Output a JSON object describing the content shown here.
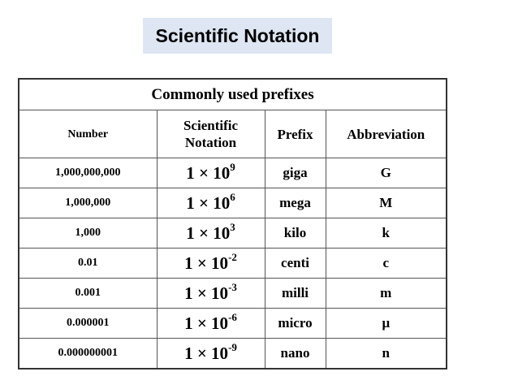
{
  "title": "Scientific Notation",
  "table": {
    "caption": "Commonly used prefixes",
    "headers": {
      "number": "Number",
      "scientific_line1": "Scientific",
      "scientific_line2": "Notation",
      "prefix": "Prefix",
      "abbreviation": "Abbreviation"
    },
    "rows": [
      {
        "number": "1,000,000,000",
        "mantissa": "1 × 10",
        "exponent": "9",
        "prefix": "giga",
        "abbr": "G"
      },
      {
        "number": "1,000,000",
        "mantissa": "1 × 10",
        "exponent": "6",
        "prefix": "mega",
        "abbr": "M"
      },
      {
        "number": "1,000",
        "mantissa": "1 × 10",
        "exponent": "3",
        "prefix": "kilo",
        "abbr": "k"
      },
      {
        "number": "0.01",
        "mantissa": "1 × 10",
        "exponent": "-2",
        "prefix": "centi",
        "abbr": "c"
      },
      {
        "number": "0.001",
        "mantissa": "1 × 10",
        "exponent": "-3",
        "prefix": "milli",
        "abbr": "m"
      },
      {
        "number": "0.000001",
        "mantissa": "1 × 10",
        "exponent": "-6",
        "prefix": "micro",
        "abbr": "μ"
      },
      {
        "number": "0.000000001",
        "mantissa": "1 × 10",
        "exponent": "-9",
        "prefix": "nano",
        "abbr": "n"
      }
    ]
  },
  "colors": {
    "title_background": "#dde6f2",
    "border": "#555555"
  }
}
